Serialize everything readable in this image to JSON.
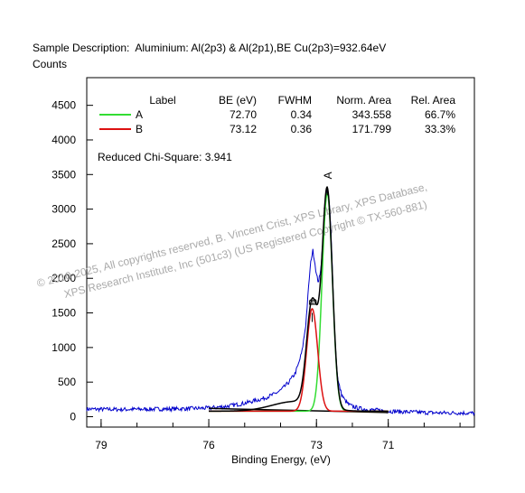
{
  "header": {
    "description": "Sample Description:  Aluminium: Al(2p3) & Al(2p1),BE Cu(2p3)=932.64eV",
    "ylabel": "Counts"
  },
  "watermark": {
    "line1": "© 2010-2025,  All copyrights reserved,   B. Vincent Crist,   XPS Library, XPS Database,",
    "line2": "XPS Research Institute, Inc (501c3)   (US Registered Copyright © TX-560-881)"
  },
  "legend": {
    "headers": [
      "Label",
      "BE (eV)",
      "FWHM",
      "Norm. Area",
      "Rel. Area"
    ],
    "rows": [
      {
        "label": "A",
        "be": "72.70",
        "fwhm": "0.34",
        "area": "343.558",
        "rel": "66.7%",
        "color": "#33dd33"
      },
      {
        "label": "B",
        "be": "73.12",
        "fwhm": "0.36",
        "area": "171.799",
        "rel": "33.3%",
        "color": "#dd1111"
      }
    ]
  },
  "chi_square": "Reduced Chi-Square: 3.941",
  "chart_data": {
    "type": "line",
    "xlabel": "Binding Energy, (eV)",
    "ylabel": "Counts",
    "xlim": [
      79.4,
      68.6
    ],
    "ylim": [
      -150,
      4900
    ],
    "x_reversed": true,
    "x_ticks": [
      79,
      76,
      73,
      71
    ],
    "y_ticks": [
      0,
      500,
      1000,
      1500,
      2000,
      2500,
      3000,
      3500,
      4000,
      4500
    ],
    "grid": false,
    "legend_position": "top",
    "peak_labels": [
      {
        "label": "A",
        "x": 72.7,
        "y": 3330
      },
      {
        "label": "B",
        "x": 73.12,
        "y": 1500
      }
    ],
    "background_level": 80,
    "components": [
      {
        "label": "A",
        "center": 72.7,
        "fwhm": 0.34,
        "height": 3150,
        "color": "#33dd33",
        "range": [
          76.0,
          71.0
        ]
      },
      {
        "label": "B",
        "center": 73.12,
        "fwhm": 0.36,
        "height": 1480,
        "color": "#dd1111",
        "range": [
          76.0,
          71.0
        ]
      }
    ],
    "envelope_color": "#000000",
    "raw_color": "#0000cc",
    "raw_x": [
      79.4,
      78.5,
      77.5,
      77.0,
      76.5,
      76.0,
      75.5,
      75.0,
      74.5,
      74.2,
      74.0,
      73.8,
      73.6,
      73.5,
      73.4,
      73.3,
      73.2,
      73.15,
      73.1,
      73.05,
      73.0,
      72.95,
      72.9,
      72.85,
      72.8,
      72.75,
      72.7,
      72.65,
      72.6,
      72.55,
      72.5,
      72.45,
      72.4,
      72.3,
      72.2,
      72.1,
      72.0,
      71.8,
      71.5,
      71.2,
      71.0,
      70.5,
      70.0,
      69.5,
      69.0,
      68.6
    ],
    "raw_y": [
      110,
      105,
      110,
      112,
      118,
      125,
      150,
      195,
      260,
      320,
      380,
      480,
      620,
      760,
      950,
      1320,
      2000,
      2280,
      2400,
      2250,
      2050,
      1950,
      2040,
      2320,
      2750,
      3080,
      3300,
      3150,
      2700,
      2050,
      1300,
      820,
      520,
      320,
      230,
      175,
      150,
      120,
      100,
      90,
      80,
      70,
      60,
      55,
      55,
      50
    ]
  }
}
